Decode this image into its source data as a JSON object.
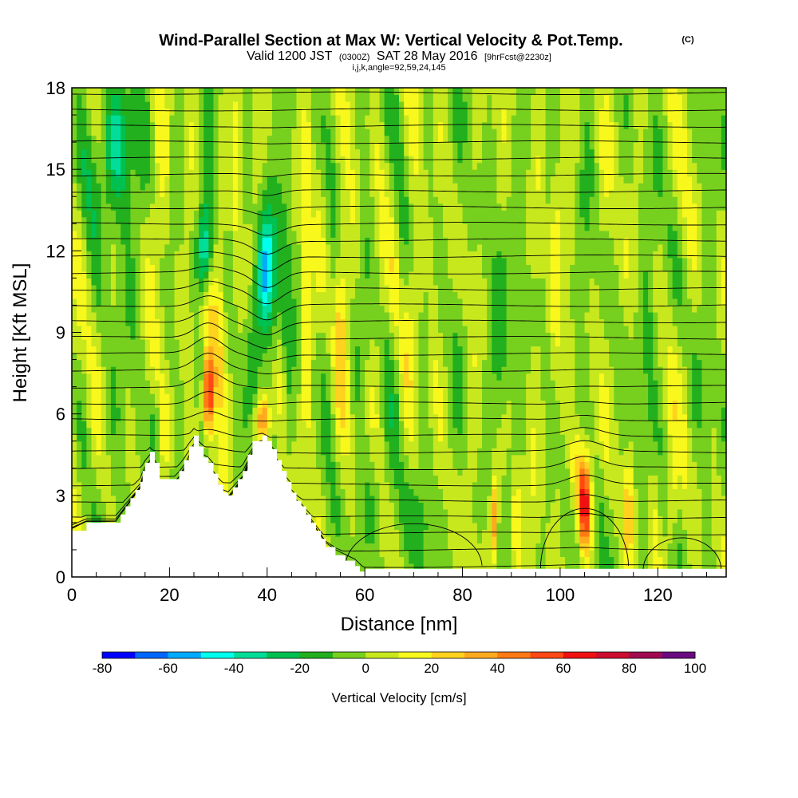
{
  "header": {
    "title": "Wind-Parallel Section at Max W: Vertical Velocity & Pot.Temp.",
    "title_mark": "(C)",
    "subtitle_a": "Valid 1200 JST",
    "subtitle_b": "(0300Z)",
    "subtitle_c": "SAT 28 May 2016",
    "subtitle_d": "[9hrFcst@2230z]",
    "subtitle_line3": "i,j,k,angle=92,59,24,145"
  },
  "chart_data": {
    "type": "heatmap",
    "xlabel": "Distance [nm]",
    "ylabel": "Height [Kft MSL]",
    "xlim": [
      0,
      134
    ],
    "ylim": [
      0,
      18
    ],
    "x_ticks": [
      "0",
      "20",
      "40",
      "60",
      "80",
      "100",
      "120"
    ],
    "y_ticks": [
      "0",
      "3",
      "6",
      "9",
      "12",
      "15",
      "18"
    ],
    "colorbar": {
      "label": "Vertical Velocity [cm/s]",
      "range": [
        -80,
        100
      ],
      "step": 10,
      "tick_labels": [
        "-80",
        "-60",
        "-40",
        "-20",
        "0",
        "20",
        "40",
        "60",
        "80",
        "100"
      ],
      "colors": [
        "#0000ff",
        "#0066ff",
        "#00aaff",
        "#00ffee",
        "#00dd99",
        "#00c050",
        "#22b01e",
        "#77d01e",
        "#c8e81e",
        "#f8f81c",
        "#ffd21e",
        "#ffaa1e",
        "#ff7a14",
        "#ff4814",
        "#f01010",
        "#cc0c30",
        "#a00a50",
        "#6a0a80"
      ]
    },
    "contour_label": "Pot.Temp.",
    "terrain_height_kft": [
      [
        0,
        1.7
      ],
      [
        3,
        2.0
      ],
      [
        9,
        2.0
      ],
      [
        10,
        2.3
      ],
      [
        11,
        2.6
      ],
      [
        12,
        2.9
      ],
      [
        13,
        3.2
      ],
      [
        14,
        3.5
      ],
      [
        14.5,
        3.9
      ],
      [
        15,
        4.2
      ],
      [
        16,
        4.6
      ],
      [
        17,
        4.2
      ],
      [
        18,
        3.6
      ],
      [
        20,
        3.6
      ],
      [
        21,
        3.6
      ],
      [
        22,
        3.9
      ],
      [
        23,
        4.3
      ],
      [
        24,
        4.8
      ],
      [
        25,
        5.2
      ],
      [
        26,
        4.8
      ],
      [
        27,
        4.4
      ],
      [
        28,
        4.2
      ],
      [
        29,
        3.8
      ],
      [
        30,
        3.4
      ],
      [
        31,
        3.1
      ],
      [
        32,
        3.0
      ],
      [
        33,
        3.3
      ],
      [
        34,
        3.6
      ],
      [
        35,
        3.9
      ],
      [
        36,
        4.5
      ],
      [
        37,
        5.0
      ],
      [
        39,
        5.2
      ],
      [
        40,
        5.0
      ],
      [
        41,
        4.7
      ],
      [
        42,
        4.3
      ],
      [
        43,
        3.9
      ],
      [
        44,
        3.5
      ],
      [
        45,
        3.1
      ],
      [
        46,
        2.8
      ],
      [
        47,
        2.6
      ],
      [
        48,
        2.3
      ],
      [
        49,
        2.0
      ],
      [
        50,
        1.7
      ],
      [
        51,
        1.4
      ],
      [
        52,
        1.1
      ],
      [
        54,
        0.8
      ],
      [
        56,
        0.6
      ],
      [
        58,
        0.4
      ],
      [
        59,
        0.2
      ],
      [
        60,
        0.0
      ]
    ],
    "features": [
      {
        "x": 28,
        "y_from": 4,
        "y_to": 8.5,
        "w_cm_s": 70
      },
      {
        "x": 39,
        "y_from": 5.2,
        "y_to": 6.5,
        "w_cm_s": 50
      },
      {
        "x": 27,
        "y_from": 8,
        "y_to": 11,
        "w_cm_s": 30
      },
      {
        "x": 40,
        "y_from": 9,
        "y_to": 13,
        "w_cm_s": -40
      },
      {
        "x": 27,
        "y_from": 10,
        "y_to": 13,
        "w_cm_s": -30
      },
      {
        "x": 105,
        "y_from": 1,
        "y_to": 4.5,
        "w_cm_s": 70
      },
      {
        "x": 48,
        "y_from": 6,
        "y_to": 18,
        "w_cm_s": 20
      }
    ]
  }
}
